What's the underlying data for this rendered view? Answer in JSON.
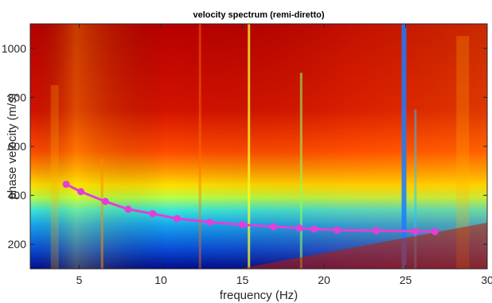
{
  "chart_data": {
    "type": "heatmap",
    "title": "velocity spectrum (remi-diretto)",
    "xlabel": "frequency (Hz)",
    "ylabel": "phase velocity (m/s)",
    "xlim": [
      2,
      30
    ],
    "ylim": [
      100,
      1100
    ],
    "xticks": [
      5,
      10,
      15,
      20,
      25,
      30
    ],
    "yticks": [
      200,
      400,
      600,
      800,
      1000
    ],
    "colormap": "jet",
    "picked_curve": {
      "color": "#e23fd8",
      "x": [
        4.2,
        5.1,
        6.6,
        8.0,
        9.5,
        11.0,
        13.0,
        15.0,
        16.9,
        18.5,
        19.4,
        20.8,
        23.2,
        25.6,
        26.8
      ],
      "y": [
        445,
        415,
        375,
        343,
        325,
        305,
        290,
        280,
        272,
        266,
        262,
        258,
        256,
        253,
        252
      ]
    }
  }
}
